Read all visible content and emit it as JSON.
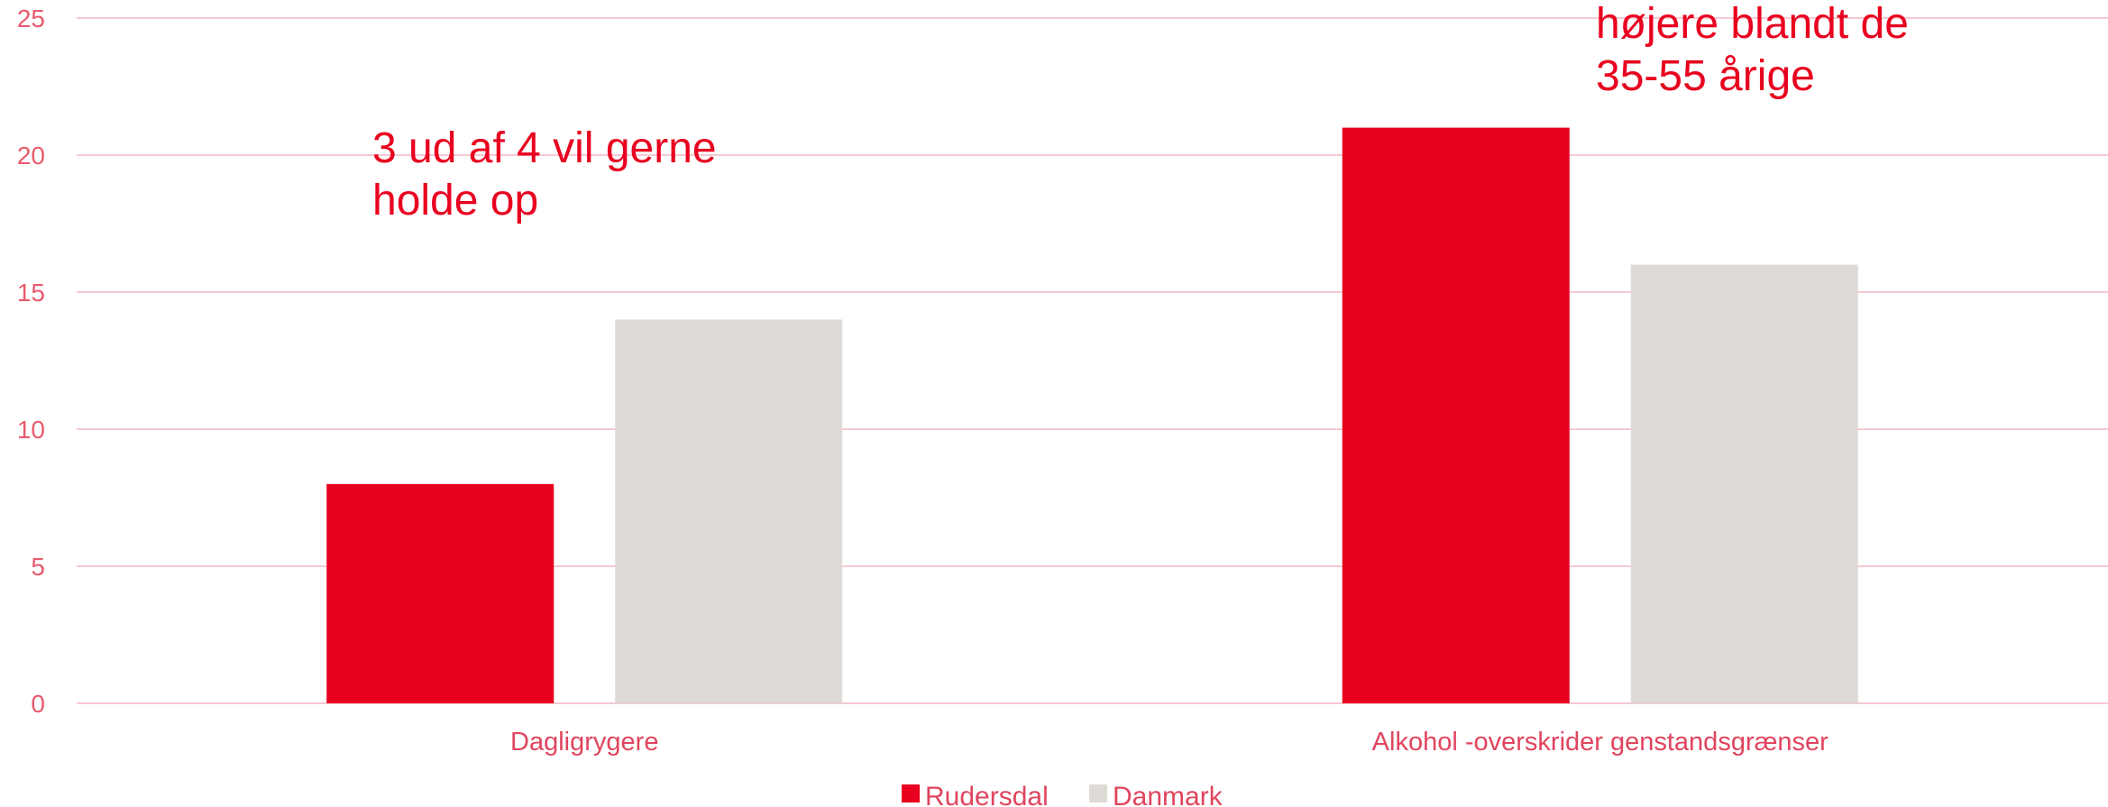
{
  "chart_data": {
    "type": "bar",
    "categories": [
      "Dagligrygere",
      "Alkohol -overskrider genstandsgrænser"
    ],
    "series": [
      {
        "name": "Rudersdal",
        "values": [
          8,
          21
        ],
        "color": "#e8001f"
      },
      {
        "name": "Danmark",
        "values": [
          14,
          16
        ],
        "color": "#dedbd7"
      }
    ],
    "ylim": [
      0,
      25
    ],
    "yticks": [
      0,
      5,
      10,
      15,
      20,
      25
    ],
    "grid": true,
    "legend_position": "bottom-center",
    "annotations": [
      {
        "category": "Dagligrygere",
        "lines": [
          "3 ud af 4 vil gerne",
          "holde op"
        ]
      },
      {
        "category": "Alkohol -overskrider genstandsgrænser",
        "lines": [
          "højere blandt de",
          "35-55 årige"
        ]
      }
    ],
    "colors": {
      "axis_text": "#e85a6e",
      "grid": "#f6c9d2",
      "annotation": "#e8001f"
    }
  }
}
